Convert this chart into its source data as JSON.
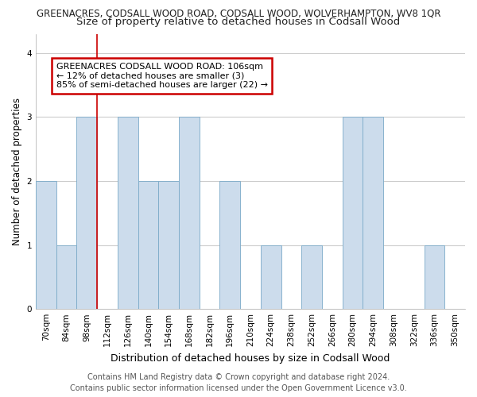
{
  "title1": "GREENACRES, CODSALL WOOD ROAD, CODSALL WOOD, WOLVERHAMPTON, WV8 1QR",
  "title2": "Size of property relative to detached houses in Codsall Wood",
  "xlabel": "Distribution of detached houses by size in Codsall Wood",
  "ylabel": "Number of detached properties",
  "categories": [
    "70sqm",
    "84sqm",
    "98sqm",
    "112sqm",
    "126sqm",
    "140sqm",
    "154sqm",
    "168sqm",
    "182sqm",
    "196sqm",
    "210sqm",
    "224sqm",
    "238sqm",
    "252sqm",
    "266sqm",
    "280sqm",
    "294sqm",
    "308sqm",
    "322sqm",
    "336sqm",
    "350sqm"
  ],
  "values": [
    2,
    1,
    3,
    0,
    3,
    2,
    2,
    3,
    0,
    2,
    0,
    1,
    0,
    1,
    0,
    3,
    3,
    0,
    0,
    1,
    0
  ],
  "bar_color": "#ccdcec",
  "bar_edge_color": "#7aaac8",
  "red_line_x": 2.5,
  "annotation_line1": "GREENACRES CODSALL WOOD ROAD: 106sqm",
  "annotation_line2": "← 12% of detached houses are smaller (3)",
  "annotation_line3": "85% of semi-detached houses are larger (22) →",
  "annotation_box_color": "#ffffff",
  "annotation_box_edge": "#cc0000",
  "ylim": [
    0,
    4.3
  ],
  "footer1": "Contains HM Land Registry data © Crown copyright and database right 2024.",
  "footer2": "Contains public sector information licensed under the Open Government Licence v3.0.",
  "fig_background_color": "#ffffff",
  "axes_background_color": "#ffffff",
  "grid_color": "#cccccc",
  "title1_fontsize": 8.5,
  "title2_fontsize": 9.5,
  "xlabel_fontsize": 9,
  "ylabel_fontsize": 8.5,
  "tick_fontsize": 7.5,
  "annotation_fontsize": 8,
  "footer_fontsize": 7
}
